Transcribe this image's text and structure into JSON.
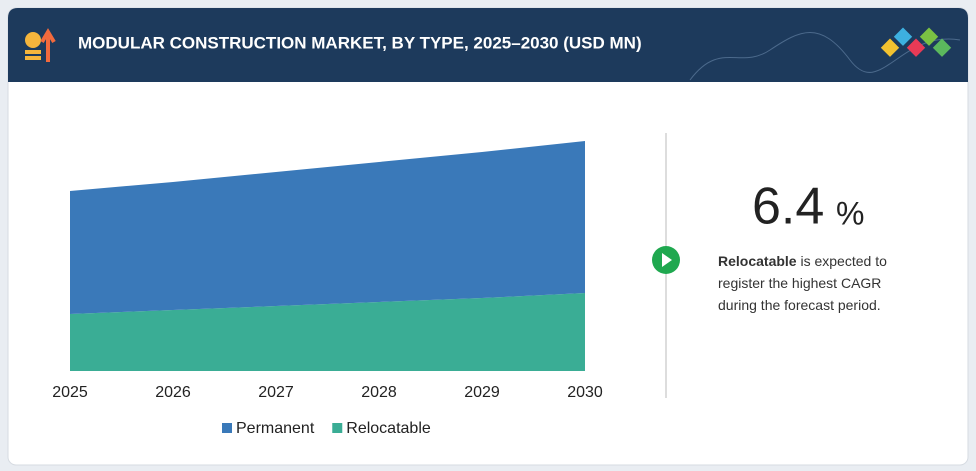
{
  "chart_data": {
    "type": "stacked-area",
    "title": "MODULAR CONSTRUCTION MARKET, BY TYPE, 2025–2030 (USD MN)",
    "categories": [
      "2025",
      "2026",
      "2027",
      "2028",
      "2029",
      "2030"
    ],
    "series": [
      {
        "name": "Relocatable",
        "color": "#3aad95",
        "values": [
          57,
          61,
          65,
          69,
          73,
          78
        ]
      },
      {
        "name": "Permanent",
        "color": "#3a79b9",
        "values": [
          123,
          128,
          134,
          140,
          146,
          152
        ]
      }
    ],
    "legend_order": [
      "Permanent",
      "Relocatable"
    ],
    "ylim": [
      0,
      240
    ],
    "legend": "bottom"
  },
  "callout": {
    "value": "6.4",
    "unit": "%",
    "highlight": "Relocatable",
    "text": " is expected to register the highest CAGR during the forecast period."
  }
}
